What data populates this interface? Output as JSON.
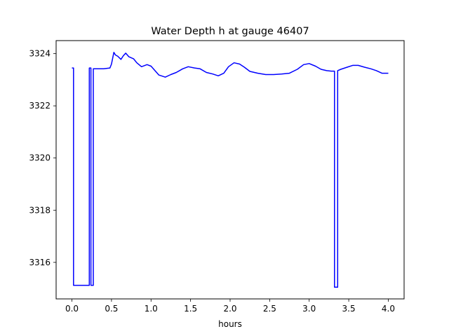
{
  "chart_data": {
    "type": "line",
    "title": "Water Depth h at gauge 46407",
    "xlabel": "hours",
    "ylabel": "",
    "xlim": [
      -0.2,
      4.2
    ],
    "ylim": [
      3314.6,
      3324.5
    ],
    "xticks": [
      0.0,
      0.5,
      1.0,
      1.5,
      2.0,
      2.5,
      3.0,
      3.5,
      4.0
    ],
    "xtick_labels": [
      "0.0",
      "0.5",
      "1.0",
      "1.5",
      "2.0",
      "2.5",
      "3.0",
      "3.5",
      "4.0"
    ],
    "yticks": [
      3316,
      3318,
      3320,
      3322,
      3324
    ],
    "ytick_labels": [
      "3316",
      "3318",
      "3320",
      "3322",
      "3324"
    ],
    "grid": false,
    "legend": "none",
    "series": [
      {
        "color": "#0000ff",
        "points": [
          [
            0.0,
            3323.45
          ],
          [
            0.02,
            3323.45
          ],
          [
            0.02,
            3315.12
          ],
          [
            0.22,
            3315.12
          ],
          [
            0.22,
            3323.45
          ],
          [
            0.24,
            3323.45
          ],
          [
            0.24,
            3315.12
          ],
          [
            0.27,
            3315.12
          ],
          [
            0.27,
            3323.42
          ],
          [
            0.3,
            3323.42
          ],
          [
            0.4,
            3323.42
          ],
          [
            0.48,
            3323.45
          ],
          [
            0.5,
            3323.6
          ],
          [
            0.53,
            3324.05
          ],
          [
            0.55,
            3323.95
          ],
          [
            0.58,
            3323.9
          ],
          [
            0.62,
            3323.78
          ],
          [
            0.65,
            3323.92
          ],
          [
            0.68,
            3324.02
          ],
          [
            0.72,
            3323.88
          ],
          [
            0.78,
            3323.8
          ],
          [
            0.82,
            3323.65
          ],
          [
            0.88,
            3323.5
          ],
          [
            0.95,
            3323.58
          ],
          [
            1.0,
            3323.52
          ],
          [
            1.05,
            3323.35
          ],
          [
            1.1,
            3323.18
          ],
          [
            1.18,
            3323.1
          ],
          [
            1.25,
            3323.2
          ],
          [
            1.32,
            3323.28
          ],
          [
            1.4,
            3323.42
          ],
          [
            1.47,
            3323.5
          ],
          [
            1.55,
            3323.45
          ],
          [
            1.62,
            3323.42
          ],
          [
            1.7,
            3323.28
          ],
          [
            1.78,
            3323.22
          ],
          [
            1.85,
            3323.15
          ],
          [
            1.92,
            3323.25
          ],
          [
            1.98,
            3323.5
          ],
          [
            2.05,
            3323.65
          ],
          [
            2.12,
            3323.6
          ],
          [
            2.18,
            3323.48
          ],
          [
            2.25,
            3323.32
          ],
          [
            2.35,
            3323.25
          ],
          [
            2.45,
            3323.2
          ],
          [
            2.55,
            3323.2
          ],
          [
            2.65,
            3323.22
          ],
          [
            2.75,
            3323.25
          ],
          [
            2.85,
            3323.4
          ],
          [
            2.93,
            3323.58
          ],
          [
            3.0,
            3323.62
          ],
          [
            3.08,
            3323.52
          ],
          [
            3.15,
            3323.4
          ],
          [
            3.22,
            3323.35
          ],
          [
            3.28,
            3323.33
          ],
          [
            3.32,
            3323.33
          ],
          [
            3.32,
            3315.05
          ],
          [
            3.36,
            3315.05
          ],
          [
            3.36,
            3323.35
          ],
          [
            3.4,
            3323.4
          ],
          [
            3.48,
            3323.48
          ],
          [
            3.55,
            3323.55
          ],
          [
            3.62,
            3323.55
          ],
          [
            3.7,
            3323.48
          ],
          [
            3.78,
            3323.42
          ],
          [
            3.85,
            3323.35
          ],
          [
            3.92,
            3323.25
          ],
          [
            4.0,
            3323.25
          ]
        ]
      }
    ]
  }
}
